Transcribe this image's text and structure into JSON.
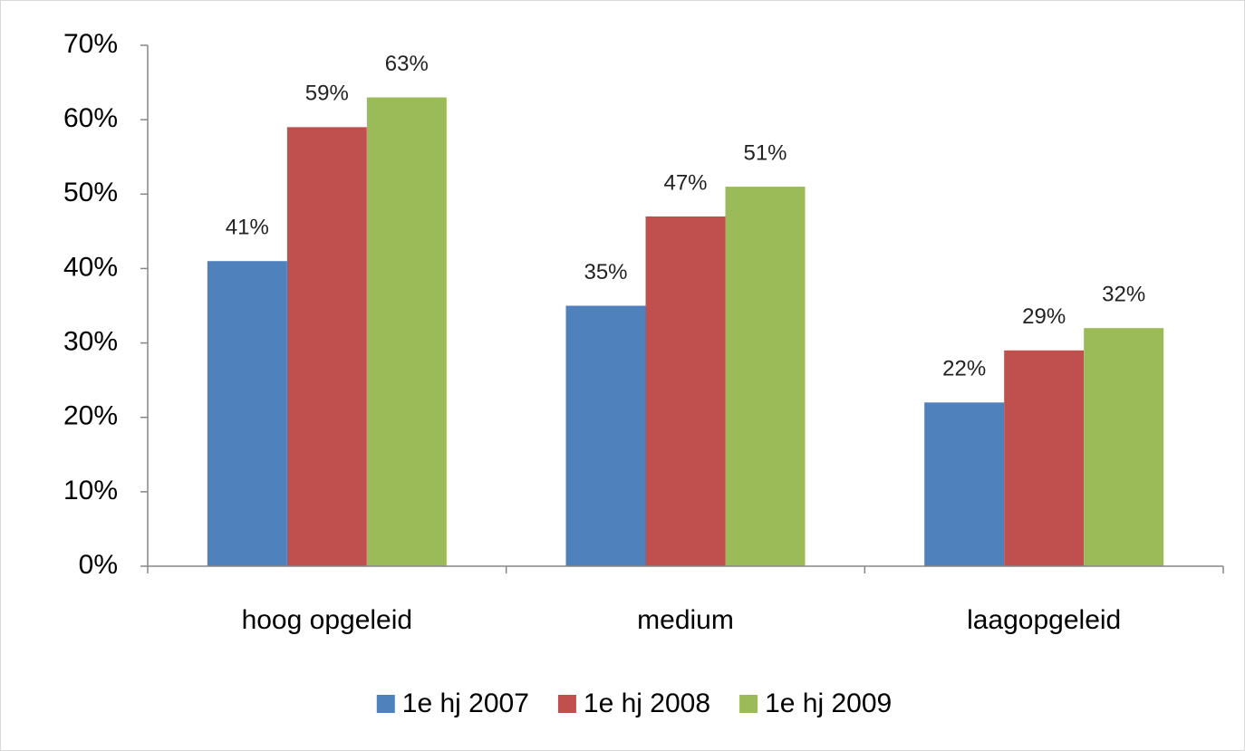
{
  "chart_data": {
    "type": "bar",
    "categories": [
      "hoog opgeleid",
      "medium",
      "laagopgeleid"
    ],
    "series": [
      {
        "name": "1e hj 2007",
        "color": "#4f81bd",
        "values": [
          41,
          35,
          22
        ],
        "value_labels": [
          "41%",
          "35%",
          "22%"
        ]
      },
      {
        "name": "1e hj 2008",
        "color": "#c0504d",
        "values": [
          59,
          47,
          29
        ],
        "value_labels": [
          "59%",
          "47%",
          "29%"
        ]
      },
      {
        "name": "1e hj 2009",
        "color": "#9bbb59",
        "values": [
          63,
          51,
          32
        ],
        "value_labels": [
          "63%",
          "51%",
          "32%"
        ]
      }
    ],
    "ylim": [
      0,
      70
    ],
    "yticks": [
      {
        "value": 0,
        "label": "0%"
      },
      {
        "value": 10,
        "label": "10%"
      },
      {
        "value": 20,
        "label": "20%"
      },
      {
        "value": 30,
        "label": "30%"
      },
      {
        "value": 40,
        "label": "40%"
      },
      {
        "value": 50,
        "label": "50%"
      },
      {
        "value": 60,
        "label": "60%"
      },
      {
        "value": 70,
        "label": "70%"
      }
    ],
    "grid": false,
    "legend": "bottom"
  }
}
